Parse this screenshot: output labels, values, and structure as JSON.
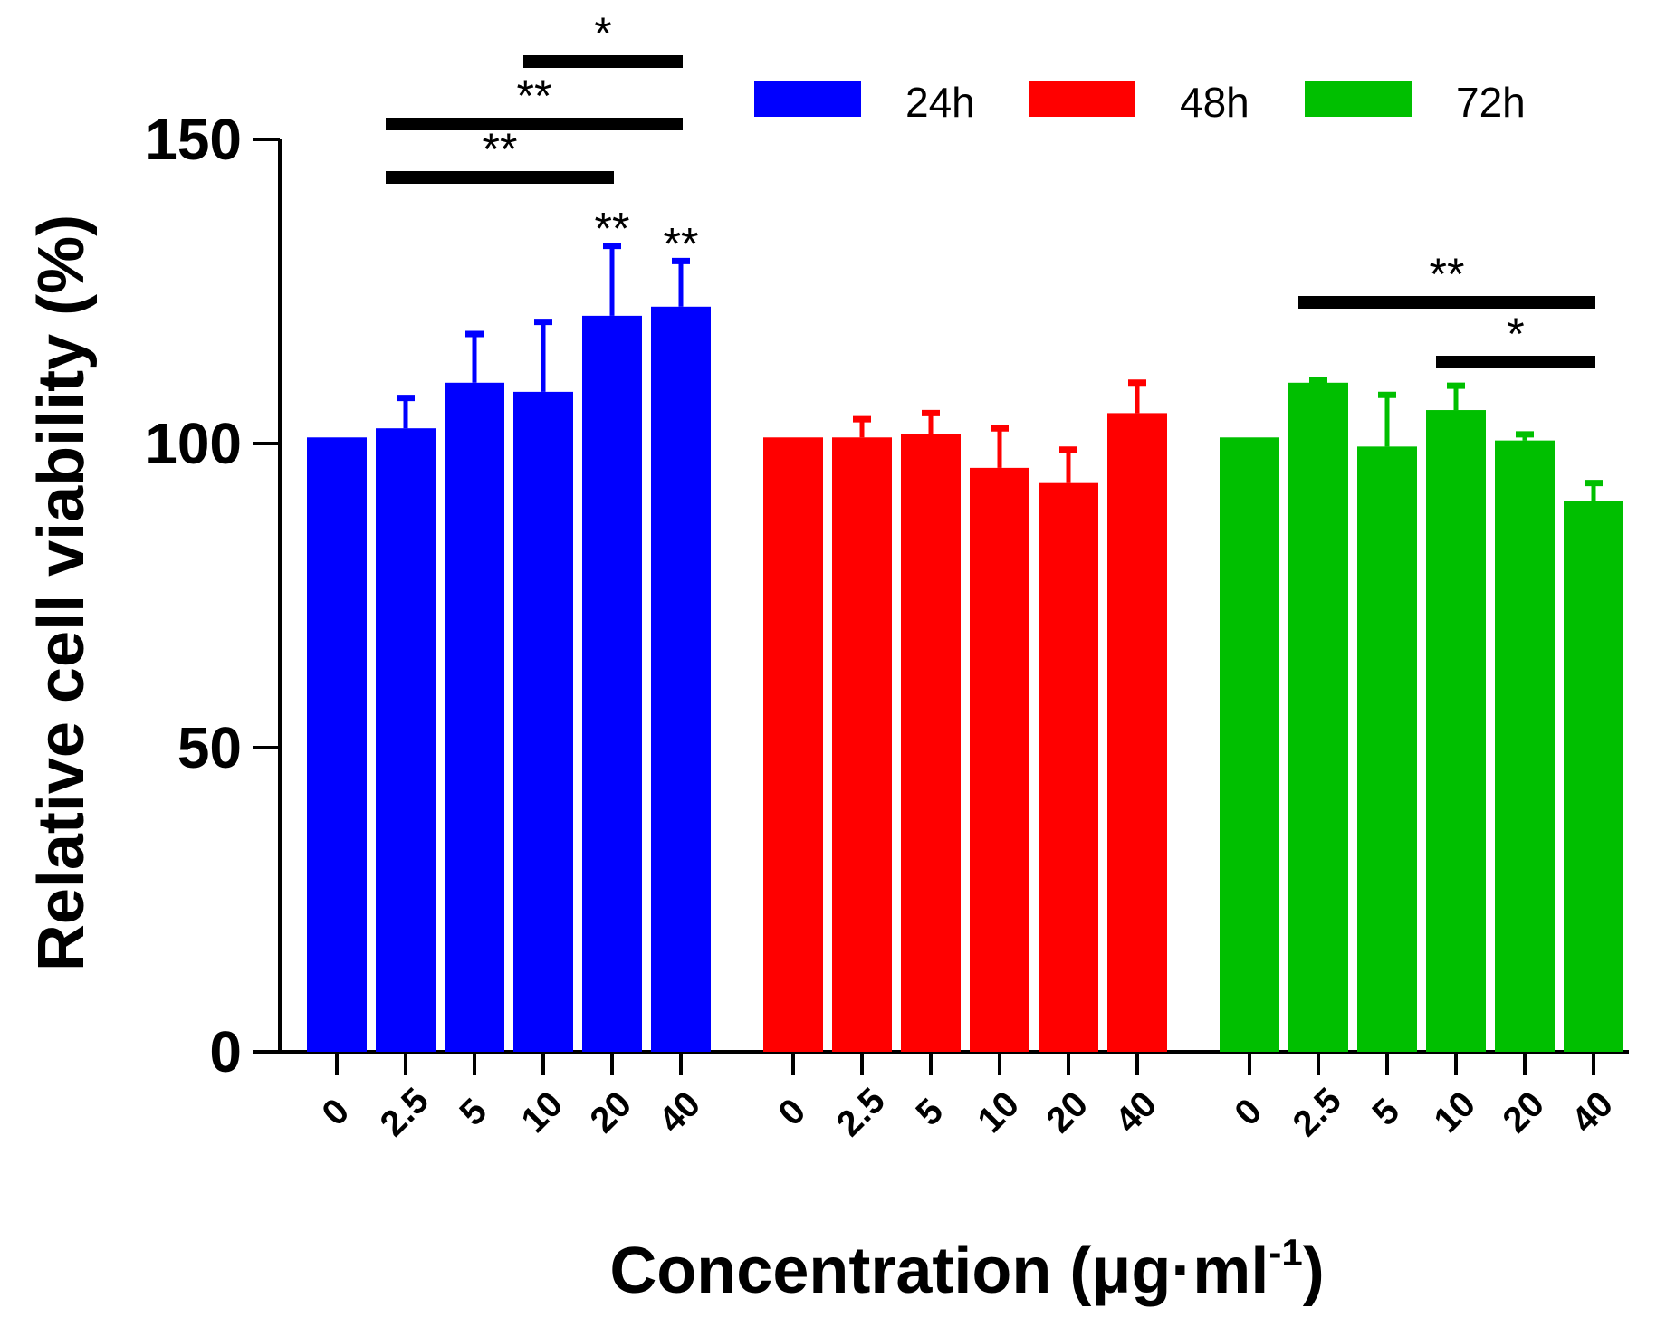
{
  "chart_data": {
    "type": "bar",
    "title": "",
    "ylabel": "Relative cell viability (%)",
    "xlabel_main": "Concentration (μg·ml",
    "xlabel_sup": "-1",
    "xlabel_end": ")",
    "ylim": [
      0,
      150
    ],
    "yticks": [
      "0",
      "50",
      "100",
      "150"
    ],
    "categories": [
      "0",
      "2.5",
      "5",
      "10",
      "20",
      "40"
    ],
    "series": [
      {
        "name": "24h",
        "color": "#0000ff",
        "values": [
          101,
          102.5,
          110,
          108.5,
          121,
          122.5
        ],
        "errors": [
          0,
          5,
          8,
          11.5,
          11.5,
          7.5
        ]
      },
      {
        "name": "48h",
        "color": "#ff0000",
        "values": [
          101,
          101,
          101.5,
          96,
          93.5,
          105
        ],
        "errors": [
          0,
          3,
          3.5,
          6.5,
          5.5,
          5
        ]
      },
      {
        "name": "72h",
        "color": "#00bf00",
        "values": [
          101,
          110,
          99.5,
          105.5,
          100.5,
          90.5
        ],
        "errors": [
          0,
          0.5,
          8.5,
          4,
          1,
          3
        ]
      }
    ],
    "bar_annotations": [
      {
        "series": 0,
        "index": 4,
        "text": "**"
      },
      {
        "series": 0,
        "index": 5,
        "text": "**"
      }
    ],
    "significance_brackets": [
      {
        "series": 0,
        "from": 3,
        "to": 5,
        "text": "*"
      },
      {
        "series": 0,
        "from": 1,
        "to": 5,
        "text": "**"
      },
      {
        "series": 0,
        "from": 1,
        "to": 4,
        "text": "**"
      },
      {
        "series": 2,
        "from": 1,
        "to": 5,
        "text": "**"
      },
      {
        "series": 2,
        "from": 3,
        "to": 5,
        "text": "*"
      }
    ]
  }
}
